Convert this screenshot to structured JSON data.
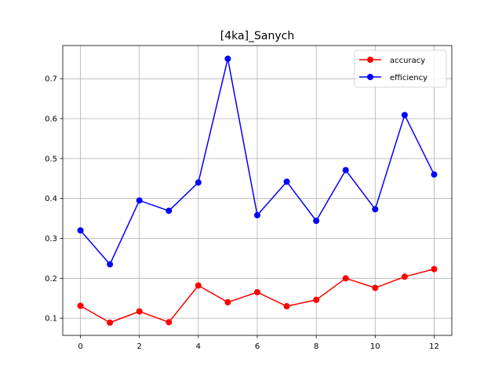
{
  "chart_data": {
    "type": "line",
    "title": "[4ka]_Sanych",
    "xlabel": "",
    "ylabel": "",
    "x": [
      0,
      1,
      2,
      3,
      4,
      5,
      6,
      7,
      8,
      9,
      10,
      11,
      12
    ],
    "xlim": [
      -0.6,
      12.6
    ],
    "ylim": [
      0.057,
      0.783
    ],
    "xticks": [
      0,
      2,
      4,
      6,
      8,
      10,
      12
    ],
    "yticks": [
      0.1,
      0.2,
      0.3,
      0.4,
      0.5,
      0.6,
      0.7
    ],
    "grid": true,
    "legend_position": "top-right",
    "series": [
      {
        "name": "accuracy",
        "color": "#ff0000",
        "marker": "circle",
        "values": [
          0.131,
          0.089,
          0.117,
          0.09,
          0.182,
          0.14,
          0.165,
          0.13,
          0.146,
          0.2,
          0.176,
          0.204,
          0.223
        ]
      },
      {
        "name": "efficiency",
        "color": "#0000ff",
        "marker": "circle",
        "values": [
          0.32,
          0.235,
          0.395,
          0.369,
          0.44,
          0.75,
          0.358,
          0.442,
          0.344,
          0.471,
          0.373,
          0.609,
          0.46
        ]
      }
    ]
  }
}
